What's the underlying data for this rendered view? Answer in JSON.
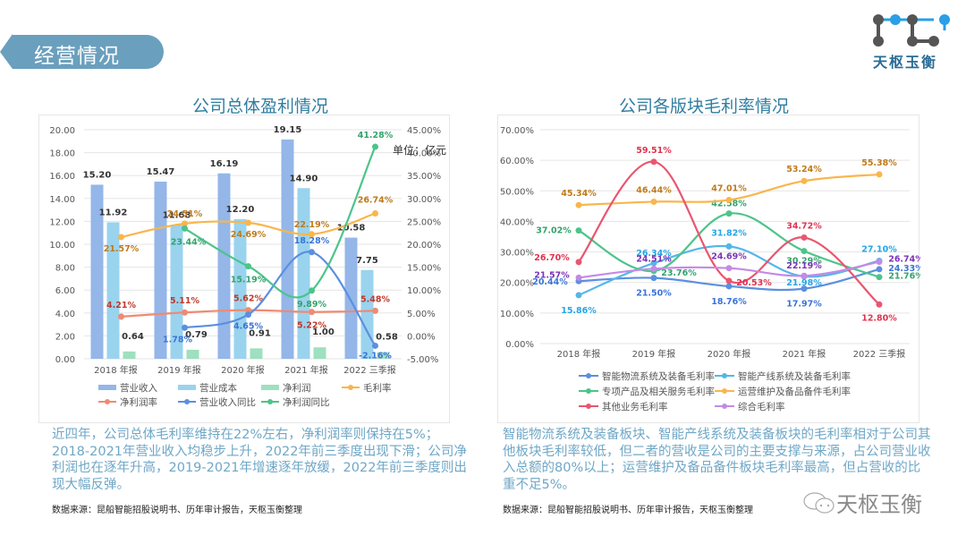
{
  "header": {
    "section_title": "经营情况",
    "logo_text": "天枢玉衡"
  },
  "left": {
    "title": "公司总体盈利情况",
    "unit_label": "单位：亿元",
    "description": "近四年，公司总体毛利率维持在22%左右，净利润率则保持在5%；2018-2021年营业收入均稳步上升，2022年前三季度出现下滑；公司净利润也在逐年升高，2019-2021年增速逐年放缓，2022年前三季度则出现大幅反弹。",
    "source": "数据来源：昆船智能招股说明书、历年审计报告，天枢玉衡整理"
  },
  "right": {
    "title": "公司各版块毛利率情况",
    "description": "智能物流系统及装备板块、智能产线系统及装备板块的毛利率相对于公司其他板块毛利率较低，但二者的营收是公司的主要支撑与来源，占公司营业收入总额的80%以上；运营维护及备品备件板块毛利率最高，但占营收的比重不足5%。",
    "source": "数据来源：昆船智能招股说明书、历年审计报告，天枢玉衡整理"
  },
  "watermark": {
    "text": "天枢玉衡"
  },
  "chart_data": [
    {
      "type": "bar",
      "title": "公司总体盈利情况",
      "categories": [
        "2018 年报",
        "2019 年报",
        "2020 年报",
        "2021 年报",
        "2022 三季报"
      ],
      "ylim": [
        0,
        20
      ],
      "yticks": [
        "0.00",
        "2.00",
        "4.00",
        "6.00",
        "8.00",
        "10.00",
        "12.00",
        "14.00",
        "16.00",
        "18.00",
        "20.00"
      ],
      "y2lim": [
        -5,
        45
      ],
      "y2ticks": [
        "-5.00%",
        "0.00%",
        "5.00%",
        "10.00%",
        "15.00%",
        "20.00%",
        "25.00%",
        "30.00%",
        "35.00%",
        "40.00%",
        "45.00%"
      ],
      "grid": true,
      "legend_position": "bottom",
      "bar_series": [
        {
          "name": "营业收入",
          "color": "#94b6e8",
          "values": [
            15.2,
            15.47,
            16.19,
            19.15,
            10.58
          ],
          "labels": [
            "15.20",
            "15.47",
            "16.19",
            "19.15",
            "10.58"
          ]
        },
        {
          "name": "营业成本",
          "color": "#9ad3ee",
          "values": [
            11.92,
            11.68,
            12.2,
            14.9,
            7.75
          ],
          "labels": [
            "11.92",
            "11.68",
            "12.20",
            "14.90",
            "7.75"
          ]
        },
        {
          "name": "净利润",
          "color": "#9ee0bf",
          "values": [
            0.64,
            0.79,
            0.91,
            1.0,
            0.58
          ],
          "labels": [
            "0.64",
            "0.79",
            "0.91",
            "1.00",
            "0.58"
          ]
        }
      ],
      "line_series": [
        {
          "name": "毛利率",
          "color": "#f8b64c",
          "label_color": "#c07a1a",
          "axis": "right",
          "values": [
            21.57,
            24.51,
            24.69,
            22.19,
            26.74
          ],
          "labels": [
            "21.57%",
            "24.51%",
            "24.69%",
            "22.19%",
            "26.74%"
          ]
        },
        {
          "name": "净利润率",
          "color": "#ef8a72",
          "label_color": "#c0392b",
          "axis": "right",
          "values": [
            4.21,
            5.11,
            5.62,
            5.22,
            5.48
          ],
          "labels": [
            "4.21%",
            "5.11%",
            "5.62%",
            "5.22%",
            "5.48%"
          ]
        },
        {
          "name": "营业收入同比",
          "color": "#5b8fe0",
          "label_color": "#3a74d8",
          "axis": "right",
          "values": [
            null,
            1.78,
            4.65,
            18.28,
            -2.16
          ],
          "labels": [
            "",
            "1.78%",
            "4.65%",
            "18.28%",
            "-2.16%"
          ]
        },
        {
          "name": "净利润同比",
          "color": "#4cc48a",
          "label_color": "#33a36b",
          "axis": "right",
          "values": [
            null,
            23.44,
            15.19,
            9.89,
            41.28
          ],
          "labels": [
            "",
            "23.44%",
            "15.19%",
            "9.89%",
            "41.28%"
          ]
        }
      ]
    },
    {
      "type": "line",
      "title": "公司各版块毛利率情况",
      "categories": [
        "2018 年报",
        "2019 年报",
        "2020 年报",
        "2021 年报",
        "2022 三季报"
      ],
      "ylim": [
        0,
        70
      ],
      "yticks": [
        "0.00%",
        "10.00%",
        "20.00%",
        "30.00%",
        "40.00%",
        "50.00%",
        "60.00%",
        "70.00%"
      ],
      "grid": true,
      "legend_position": "bottom",
      "series": [
        {
          "name": "智能物流系统及装备毛利率",
          "color": "#5b8fe0",
          "label_color": "#3a74d8",
          "values": [
            20.44,
            21.5,
            18.76,
            17.97,
            24.33
          ],
          "labels": [
            "20.44%",
            "21.50%",
            "18.76%",
            "17.97%",
            "24.33%"
          ]
        },
        {
          "name": "智能产线系统及装备毛利率",
          "color": "#55b6e6",
          "label_color": "#25a6e6",
          "values": [
            15.86,
            26.34,
            31.82,
            21.98,
            27.1
          ],
          "labels": [
            "15.86%",
            "26.34%",
            "31.82%",
            "21.98%",
            "27.10%"
          ]
        },
        {
          "name": "专项产品及相关服务毛利率",
          "color": "#4cc48a",
          "label_color": "#33a36b",
          "values": [
            37.02,
            23.76,
            42.58,
            30.29,
            21.76
          ],
          "labels": [
            "37.02%",
            "23.76%",
            "42.58%",
            "30.29%",
            "21.76%"
          ]
        },
        {
          "name": "运营维护及备品备件毛利率",
          "color": "#f8b64c",
          "label_color": "#c07a1a",
          "values": [
            45.34,
            46.44,
            47.01,
            53.24,
            55.38
          ],
          "labels": [
            "45.34%",
            "46.44%",
            "47.01%",
            "53.24%",
            "55.38%"
          ]
        },
        {
          "name": "其他业务毛利率",
          "color": "#e9566f",
          "label_color": "#e0334f",
          "values": [
            26.7,
            59.51,
            20.53,
            34.72,
            12.8
          ],
          "labels": [
            "26.70%",
            "59.51%",
            "20.53%",
            "34.72%",
            "12.80%"
          ]
        },
        {
          "name": "综合毛利率",
          "color": "#c48ae6",
          "label_color": "#7a35b5",
          "values": [
            21.57,
            24.51,
            24.69,
            22.19,
            26.74
          ],
          "labels": [
            "21.57%",
            "24.51%",
            "24.69%",
            "22.19%",
            "26.74%"
          ]
        }
      ]
    }
  ]
}
